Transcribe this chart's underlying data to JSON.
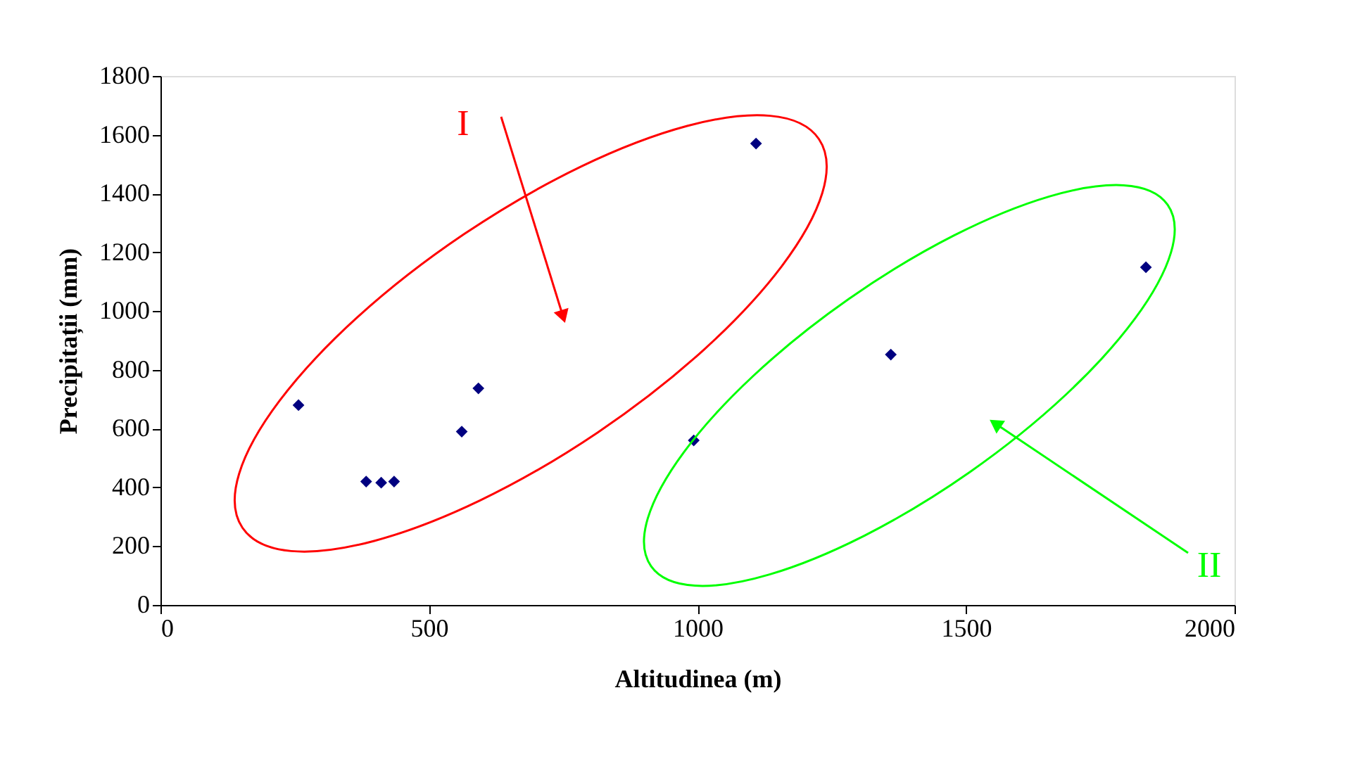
{
  "chart_data": {
    "type": "scatter",
    "xlabel": "Altitudinea (m)",
    "ylabel": "Precipitații (mm)",
    "x": [
      257,
      383,
      411,
      435,
      561,
      592,
      1109,
      993,
      1360,
      1835
    ],
    "series": [
      {
        "color": "#000080",
        "values": [
          680,
          420,
          416,
          420,
          590,
          737,
          1570,
          560,
          852,
          1149
        ]
      }
    ],
    "marker": "diamond",
    "xlim": [
      0,
      2000
    ],
    "xticks": [
      0,
      500,
      1000,
      1500,
      2000
    ],
    "ylim": [
      0,
      1800
    ],
    "yticks": [
      0,
      200,
      400,
      600,
      800,
      1000,
      1200,
      1400,
      1600,
      1800
    ],
    "grid": false,
    "annotations": [
      "I",
      "II"
    ]
  }
}
